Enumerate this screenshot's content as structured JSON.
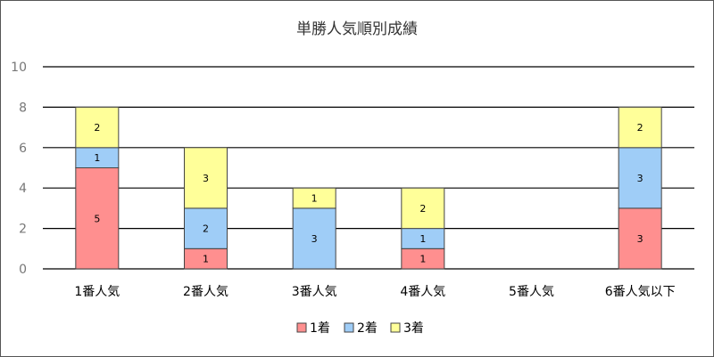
{
  "chart_data": {
    "type": "bar",
    "stacked": true,
    "title": "単勝人気順別成績",
    "xlabel": "",
    "ylabel": "",
    "categories": [
      "1番人気",
      "2番人気",
      "3番人気",
      "4番人気",
      "5番人気",
      "6番人気以下"
    ],
    "series": [
      {
        "name": "1着",
        "color": "#ff8f8f",
        "values": [
          5,
          1,
          0,
          1,
          0,
          3
        ]
      },
      {
        "name": "2着",
        "color": "#9fcdf7",
        "values": [
          1,
          2,
          3,
          1,
          0,
          3
        ]
      },
      {
        "name": "3着",
        "color": "#ffff99",
        "values": [
          2,
          3,
          1,
          2,
          0,
          2
        ]
      }
    ],
    "ylim": [
      0,
      10
    ],
    "yticks": [
      0,
      2,
      4,
      6,
      8,
      10
    ],
    "grid": true,
    "legend": "bottom"
  }
}
